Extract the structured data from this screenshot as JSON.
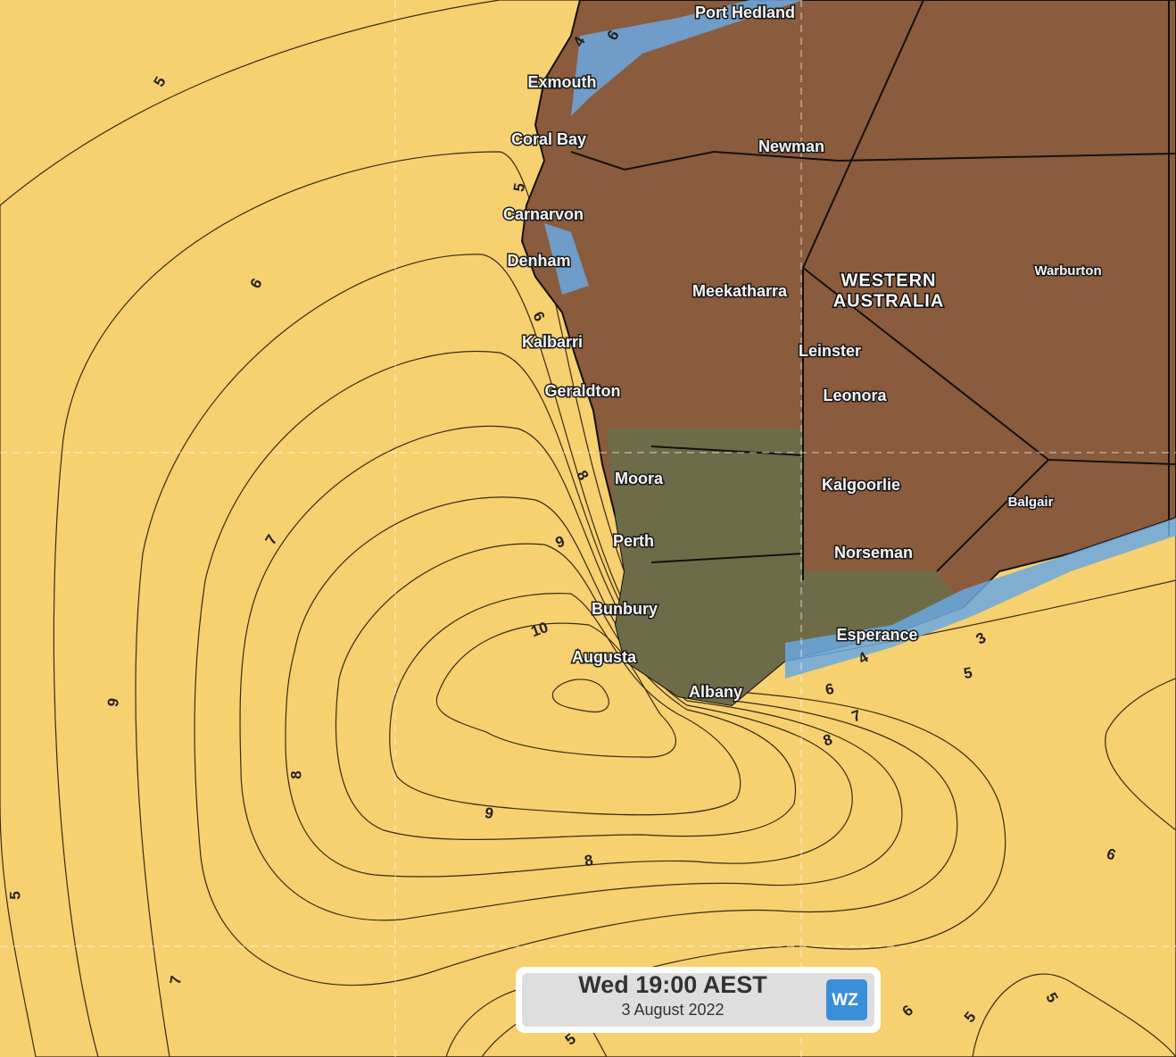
{
  "map": {
    "places": [
      "Port Hedland",
      "Exmouth",
      "Coral Bay",
      "Newman",
      "Carnarvon",
      "Denham",
      "Meekatharra",
      "Warburton",
      "Kalbarri",
      "Leinster",
      "Geraldton",
      "Leonora",
      "Moora",
      "Kalgoorlie",
      "Balgair",
      "Perth",
      "Norseman",
      "Bunbury",
      "Esperance",
      "Augusta",
      "Albany"
    ],
    "region_label": [
      "WESTERN",
      "AUSTRALIA"
    ],
    "contour_labels": [
      5,
      4,
      6,
      5,
      6,
      6,
      8,
      9,
      10,
      7,
      9,
      8,
      9,
      8,
      7,
      5,
      3,
      4,
      5,
      6,
      7,
      8,
      6,
      6,
      5,
      5,
      5
    ],
    "timestamp": {
      "time": "Wed 19:00 AEST",
      "date": "3 August 2022"
    },
    "logo": "WZ"
  }
}
